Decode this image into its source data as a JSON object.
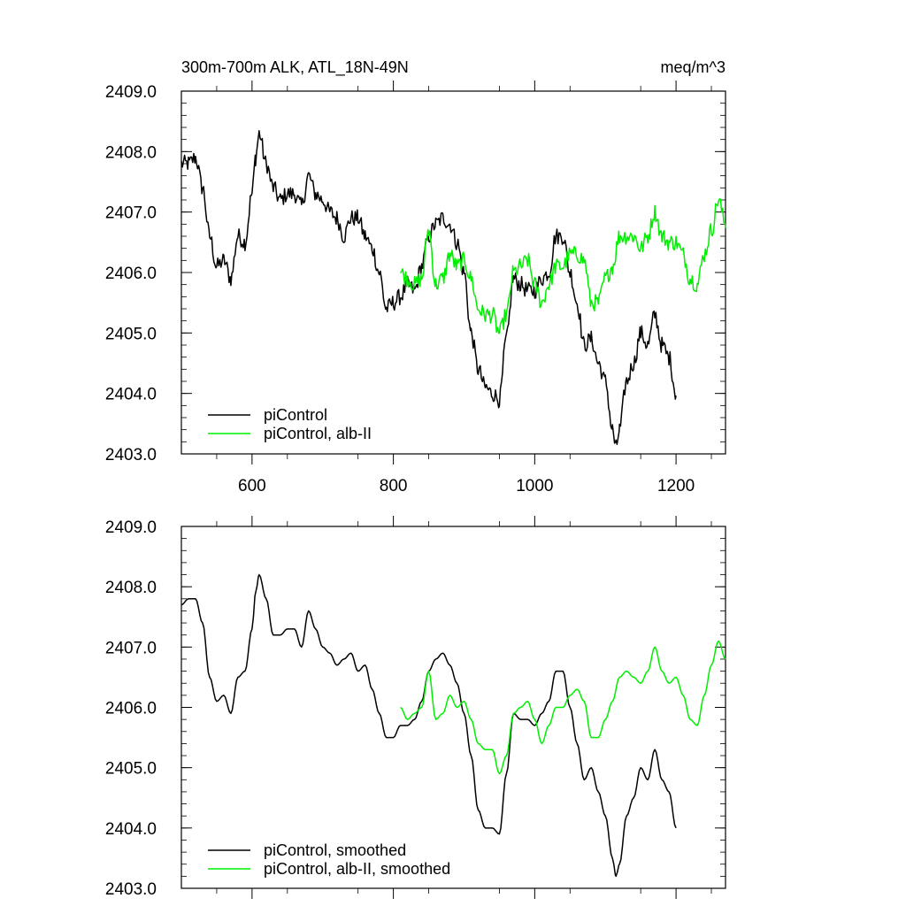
{
  "figure": {
    "title_left": "300m-700m ALK, ATL_18N-49N",
    "title_right": "meq/m^3"
  },
  "colors": {
    "piControl": "#000000",
    "alb_II": "#00ee00",
    "axes": "#000000",
    "background": "#ffffff"
  },
  "chart_data": [
    {
      "type": "line",
      "title": "300m-700m ALK, ATL_18N-49N",
      "units": "meq/m^3",
      "xlim": [
        500,
        1270
      ],
      "ylim": [
        2403.0,
        2409.0
      ],
      "x_ticks": [
        600,
        800,
        1000,
        1200
      ],
      "x_tick_labels": [
        "600",
        "800",
        "1000",
        "1200"
      ],
      "y_ticks": [
        2403.0,
        2404.0,
        2405.0,
        2406.0,
        2407.0,
        2408.0,
        2409.0
      ],
      "y_tick_labels": [
        "2403.0",
        "2404.0",
        "2405.0",
        "2406.0",
        "2407.0",
        "2408.0",
        "2409.0"
      ],
      "grid": false,
      "legend_position": "bottom-left",
      "noisy": true,
      "series": [
        {
          "name": "piControl",
          "color": "#000000",
          "x": [
            500,
            510,
            520,
            530,
            540,
            550,
            560,
            570,
            580,
            590,
            600,
            605,
            610,
            620,
            630,
            640,
            650,
            660,
            670,
            680,
            690,
            700,
            710,
            720,
            730,
            740,
            750,
            760,
            770,
            780,
            790,
            800,
            810,
            820,
            830,
            840,
            850,
            860,
            870,
            880,
            890,
            900,
            910,
            920,
            930,
            940,
            950,
            960,
            970,
            980,
            990,
            1000,
            1010,
            1020,
            1030,
            1040,
            1050,
            1060,
            1070,
            1080,
            1090,
            1100,
            1110,
            1115,
            1120,
            1130,
            1140,
            1150,
            1160,
            1170,
            1180,
            1190,
            1200
          ],
          "y": [
            2407.8,
            2407.8,
            2407.9,
            2407.4,
            2406.6,
            2406.1,
            2406.2,
            2405.9,
            2406.6,
            2406.5,
            2407.3,
            2407.9,
            2408.3,
            2407.8,
            2407.4,
            2407.2,
            2407.3,
            2407.3,
            2407.1,
            2407.6,
            2407.3,
            2407.2,
            2407.0,
            2406.9,
            2406.6,
            2406.9,
            2406.9,
            2406.6,
            2406.4,
            2406.0,
            2405.4,
            2405.5,
            2405.6,
            2405.8,
            2405.7,
            2406.1,
            2406.6,
            2406.8,
            2406.9,
            2406.8,
            2406.5,
            2406.0,
            2405.0,
            2404.4,
            2404.1,
            2404.0,
            2403.9,
            2404.9,
            2405.9,
            2405.8,
            2405.7,
            2405.7,
            2405.9,
            2406.0,
            2406.6,
            2406.6,
            2406.0,
            2405.5,
            2404.8,
            2404.9,
            2404.5,
            2404.2,
            2403.4,
            2403.1,
            2403.4,
            2404.2,
            2404.5,
            2405.0,
            2404.8,
            2405.3,
            2404.8,
            2404.6,
            2404.0
          ]
        },
        {
          "name": "piControl, alb-II",
          "color": "#00ee00",
          "x": [
            810,
            820,
            830,
            840,
            850,
            860,
            870,
            880,
            890,
            900,
            910,
            920,
            930,
            940,
            950,
            960,
            970,
            980,
            990,
            1000,
            1010,
            1020,
            1030,
            1040,
            1050,
            1060,
            1070,
            1080,
            1090,
            1100,
            1110,
            1120,
            1130,
            1140,
            1150,
            1160,
            1170,
            1180,
            1190,
            1200,
            1210,
            1220,
            1230,
            1240,
            1250,
            1260,
            1270
          ],
          "y": [
            2406.0,
            2405.9,
            2405.8,
            2405.9,
            2406.7,
            2405.8,
            2405.9,
            2406.3,
            2406.1,
            2406.2,
            2405.9,
            2405.4,
            2405.3,
            2405.3,
            2405.0,
            2405.3,
            2406.0,
            2406.1,
            2406.2,
            2405.8,
            2405.5,
            2405.8,
            2406.1,
            2406.1,
            2406.3,
            2406.3,
            2406.2,
            2405.5,
            2405.5,
            2405.9,
            2406.1,
            2406.6,
            2406.6,
            2406.6,
            2406.4,
            2406.6,
            2407.0,
            2406.6,
            2406.5,
            2406.5,
            2406.3,
            2405.9,
            2405.8,
            2406.3,
            2406.7,
            2407.2,
            2406.8
          ]
        }
      ]
    },
    {
      "type": "line",
      "xlim": [
        500,
        1270
      ],
      "ylim": [
        2403.0,
        2409.0
      ],
      "x_ticks": [
        600,
        800,
        1000,
        1200
      ],
      "y_ticks": [
        2403.0,
        2404.0,
        2405.0,
        2406.0,
        2407.0,
        2408.0,
        2409.0
      ],
      "y_tick_labels": [
        "2403.0",
        "2404.0",
        "2405.0",
        "2406.0",
        "2407.0",
        "2408.0",
        "2409.0"
      ],
      "grid": false,
      "legend_position": "bottom-left",
      "noisy": false,
      "series": [
        {
          "name": "piControl, smoothed",
          "color": "#000000",
          "x": [
            500,
            510,
            520,
            530,
            540,
            550,
            560,
            570,
            580,
            590,
            600,
            605,
            610,
            620,
            630,
            640,
            650,
            660,
            670,
            680,
            690,
            700,
            710,
            720,
            730,
            740,
            750,
            760,
            770,
            780,
            790,
            800,
            810,
            820,
            830,
            840,
            850,
            860,
            870,
            880,
            890,
            900,
            910,
            920,
            930,
            940,
            950,
            960,
            970,
            980,
            990,
            1000,
            1010,
            1020,
            1030,
            1040,
            1050,
            1060,
            1070,
            1080,
            1090,
            1100,
            1110,
            1115,
            1120,
            1130,
            1140,
            1150,
            1160,
            1170,
            1180,
            1190,
            1200
          ],
          "y": [
            2407.7,
            2407.8,
            2407.8,
            2407.4,
            2406.5,
            2406.1,
            2406.2,
            2405.9,
            2406.5,
            2406.6,
            2407.3,
            2407.9,
            2408.2,
            2407.8,
            2407.2,
            2407.2,
            2407.3,
            2407.3,
            2407.0,
            2407.6,
            2407.3,
            2407.0,
            2406.9,
            2406.7,
            2406.8,
            2406.9,
            2406.6,
            2406.7,
            2406.3,
            2405.9,
            2405.5,
            2405.5,
            2405.7,
            2405.7,
            2405.8,
            2406.1,
            2406.6,
            2406.8,
            2406.9,
            2406.7,
            2406.4,
            2405.9,
            2405.2,
            2404.3,
            2404.0,
            2404.0,
            2403.9,
            2404.9,
            2405.9,
            2405.8,
            2405.8,
            2405.7,
            2405.9,
            2406.1,
            2406.6,
            2406.6,
            2406.0,
            2405.4,
            2404.8,
            2405.0,
            2404.6,
            2404.2,
            2403.5,
            2403.2,
            2403.4,
            2404.2,
            2404.5,
            2405.0,
            2404.8,
            2405.3,
            2404.8,
            2404.6,
            2404.0
          ]
        },
        {
          "name": "piControl, alb-II, smoothed",
          "color": "#00ee00",
          "x": [
            810,
            820,
            830,
            840,
            850,
            860,
            870,
            880,
            890,
            900,
            910,
            920,
            930,
            940,
            950,
            960,
            970,
            980,
            990,
            1000,
            1010,
            1020,
            1030,
            1040,
            1050,
            1060,
            1070,
            1080,
            1090,
            1100,
            1110,
            1120,
            1130,
            1140,
            1150,
            1160,
            1170,
            1180,
            1190,
            1200,
            1210,
            1220,
            1230,
            1240,
            1250,
            1260,
            1270
          ],
          "y": [
            2406.0,
            2405.8,
            2405.9,
            2406.0,
            2406.6,
            2405.8,
            2405.9,
            2406.2,
            2406.0,
            2406.1,
            2405.8,
            2405.4,
            2405.3,
            2405.3,
            2404.9,
            2405.2,
            2405.9,
            2406.0,
            2406.1,
            2405.8,
            2405.4,
            2405.7,
            2406.0,
            2406.0,
            2406.2,
            2406.3,
            2406.1,
            2405.5,
            2405.5,
            2405.8,
            2406.1,
            2406.5,
            2406.6,
            2406.5,
            2406.4,
            2406.6,
            2407.0,
            2406.6,
            2406.4,
            2406.5,
            2406.2,
            2405.8,
            2405.7,
            2406.2,
            2406.7,
            2407.1,
            2406.8
          ]
        }
      ]
    }
  ]
}
